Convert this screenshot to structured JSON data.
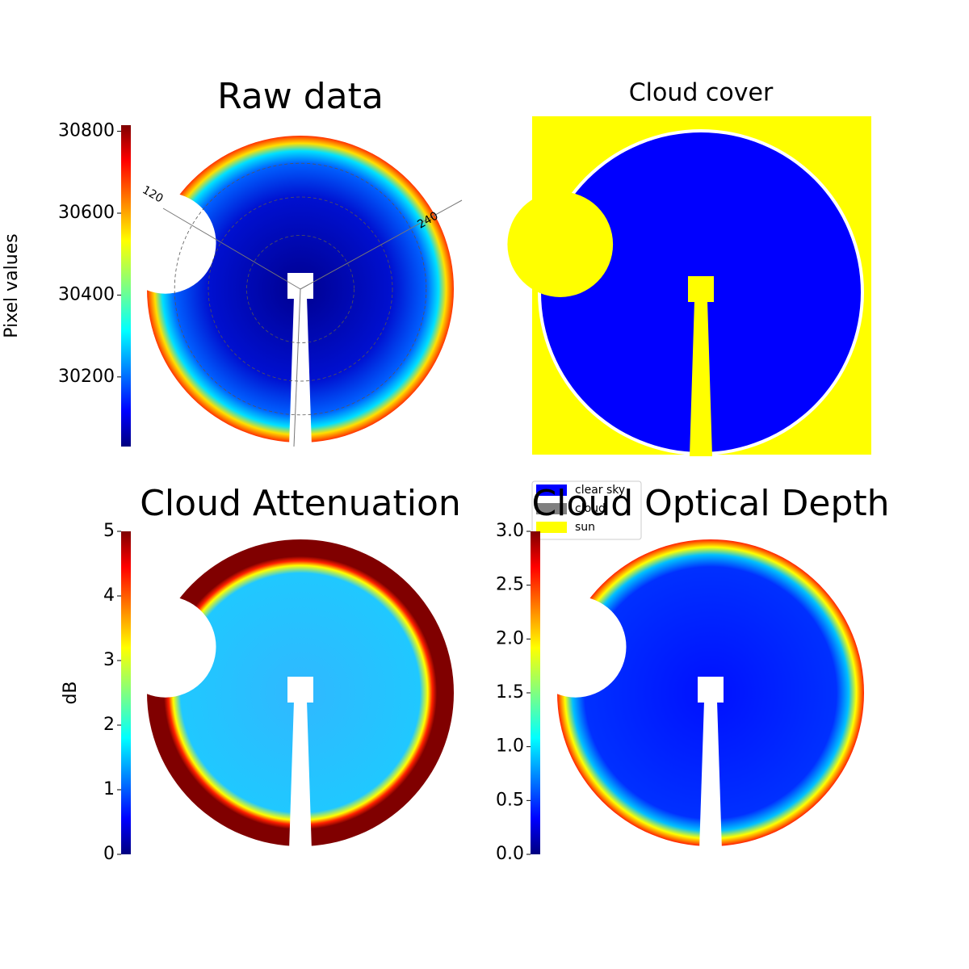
{
  "chart_data": [
    {
      "type": "heatmap",
      "title": "Raw data",
      "colormap": "jet",
      "colorbar": {
        "label": "Pixel values",
        "ylim": [
          30030,
          30815
        ],
        "yticks": [
          30200,
          30400,
          30600,
          30800
        ]
      },
      "annotations": [
        "120",
        "240"
      ]
    },
    {
      "type": "categorical",
      "title": "Cloud cover",
      "legend": [
        {
          "name": "clear sky",
          "color": "#0000ff"
        },
        {
          "name": "cloud",
          "color": "#808080"
        },
        {
          "name": "sun",
          "color": "#ffff00"
        }
      ]
    },
    {
      "type": "heatmap",
      "title": "Cloud Attenuation",
      "colormap": "jet",
      "colorbar": {
        "label": "dB",
        "ylim": [
          0,
          5
        ],
        "yticks": [
          0,
          1,
          2,
          3,
          4,
          5
        ]
      }
    },
    {
      "type": "heatmap",
      "title": "Cloud Optical Depth",
      "colormap": "jet",
      "colorbar": {
        "ylim": [
          0,
          3
        ],
        "yticks": [
          {
            "value": 0,
            "label": "0.0"
          },
          {
            "value": 0.5,
            "label": "0.5"
          },
          {
            "value": 1,
            "label": "1.0"
          },
          {
            "value": 1.5,
            "label": "1.5"
          },
          {
            "value": 2,
            "label": "2.0"
          },
          {
            "value": 2.5,
            "label": "2.5"
          },
          {
            "value": 3,
            "label": "3.0"
          }
        ]
      }
    }
  ]
}
